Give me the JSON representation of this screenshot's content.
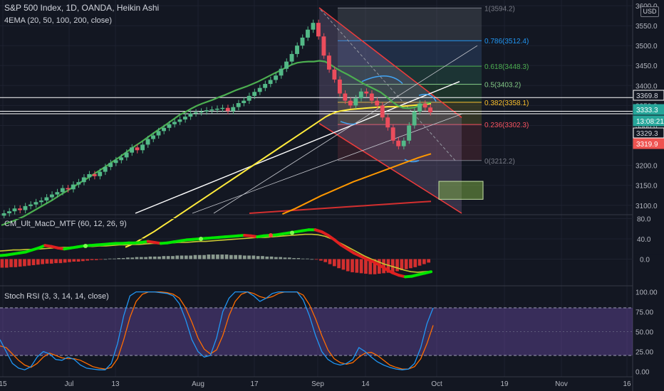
{
  "header": {
    "title": "S&P 500 Index, 1D, OANDA, Heikin Ashi",
    "ema_label": "4EMA (20, 50, 100, 200, close)",
    "macd_label": "CM_Ult_MacD_MTF (60, 12, 26, 9)",
    "rsi_label": "Stoch RSI (3, 3, 14, 14, close)",
    "currency": "USD"
  },
  "colors": {
    "background": "#131722",
    "bull": "#26a69a",
    "bull_candle": "#53b987",
    "bear": "#ef5350",
    "bear_candle": "#eb4d5c",
    "ema20": "#4caf50",
    "ema50": "#ffeb3b",
    "ema100": "#ff9800",
    "ema200": "#d32f2f",
    "stoch_k": "#2196f3",
    "stoch_d": "#ff6d00",
    "rsi_band": "#7e57c2"
  },
  "chart_data": [
    {
      "type": "candlestick",
      "x_ticks": [
        "15",
        "Jul",
        "13",
        "Aug",
        "17",
        "Sep",
        "14",
        "Oct",
        "19",
        "Nov",
        "16"
      ],
      "y_ticks": [
        3100,
        3150,
        3200,
        3250,
        3300,
        3350,
        3400,
        3450,
        3500,
        3550,
        3600
      ],
      "ylim": [
        3080,
        3600
      ],
      "fib_levels": [
        {
          "ratio": "1",
          "value": "3594.2"
        },
        {
          "ratio": "0.786",
          "value": "3512.4"
        },
        {
          "ratio": "0.618",
          "value": "3448.3"
        },
        {
          "ratio": "0.5",
          "value": "3403.2"
        },
        {
          "ratio": "0.382",
          "value": "3358.1"
        },
        {
          "ratio": "0.236",
          "value": "3302.3"
        },
        {
          "ratio": "0",
          "value": "3212.2"
        }
      ],
      "price_tags": [
        {
          "value": "3369.8",
          "kind": "line"
        },
        {
          "value": "3333.3",
          "kind": "last"
        },
        {
          "value": "13:08:21",
          "kind": "countdown"
        },
        {
          "value": "3329.3",
          "kind": "line"
        },
        {
          "value": "3319.9",
          "kind": "low"
        }
      ],
      "horizontal_lines": [
        3369.8,
        3335.5,
        3329.3
      ],
      "close": [
        3080,
        3085,
        3092,
        3088,
        3098,
        3102,
        3108,
        3112,
        3120,
        3127,
        3133,
        3143,
        3140,
        3152,
        3158,
        3170,
        3178,
        3173,
        3184,
        3196,
        3206,
        3213,
        3220,
        3232,
        3245,
        3238,
        3252,
        3266,
        3275,
        3286,
        3294,
        3303,
        3309,
        3315,
        3322,
        3330,
        3333,
        3335,
        3338,
        3340,
        3342,
        3344,
        3336,
        3346,
        3356,
        3362,
        3374,
        3384,
        3394,
        3404,
        3414,
        3425,
        3442,
        3460,
        3479,
        3500,
        3520,
        3540,
        3557,
        3523,
        3475,
        3440,
        3415,
        3380,
        3362,
        3350,
        3368,
        3385,
        3380,
        3362,
        3350,
        3320,
        3295,
        3262,
        3248,
        3262,
        3300,
        3335,
        3355,
        3345,
        3333
      ],
      "ema20": [
        3050,
        3055,
        3060,
        3066,
        3072,
        3080,
        3088,
        3096,
        3104,
        3112,
        3121,
        3130,
        3138,
        3147,
        3156,
        3164,
        3173,
        3182,
        3191,
        3200,
        3210,
        3219,
        3229,
        3239,
        3249,
        3258,
        3268,
        3278,
        3288,
        3297,
        3307,
        3317,
        3327,
        3334,
        3342,
        3349,
        3355,
        3360,
        3365,
        3371,
        3376,
        3382,
        3388,
        3393,
        3398,
        3404,
        3410,
        3417,
        3424,
        3431,
        3438,
        3445,
        3452,
        3457,
        3459,
        3460,
        3460,
        3462,
        3460,
        3452,
        3443,
        3435,
        3428,
        3420,
        3412,
        3404,
        3397,
        3390,
        3383,
        3372,
        3360,
        3350,
        3344,
        3343,
        3345,
        3350,
        3355,
        3358
      ],
      "ema50": [
        2995,
        3000,
        3006,
        3013,
        3020,
        3027,
        3034,
        3042,
        3050,
        3058,
        3066,
        3074,
        3082,
        3090,
        3098,
        3106,
        3114,
        3122,
        3130,
        3138,
        3146,
        3154,
        3162,
        3170,
        3178,
        3186,
        3194,
        3202,
        3210,
        3218,
        3226,
        3234,
        3242,
        3250,
        3258,
        3266,
        3274,
        3282,
        3290,
        3298,
        3306,
        3314,
        3322,
        3328,
        3333,
        3336,
        3338,
        3340,
        3341,
        3342,
        3343,
        3344,
        3345,
        3346,
        3346,
        3347,
        3347,
        3347,
        3348,
        3349,
        3350,
        3351,
        3352,
        3353,
        3355
      ],
      "ema100": [
        3078,
        3085,
        3092,
        3100,
        3108,
        3116,
        3124,
        3131,
        3138,
        3145,
        3152,
        3159,
        3165,
        3171,
        3177,
        3183,
        3189,
        3195,
        3201,
        3207,
        3213,
        3219,
        3224,
        3229
      ],
      "ema200": [
        3080,
        3082,
        3084,
        3086,
        3088,
        3090,
        3092,
        3094,
        3096,
        3098,
        3100,
        3102,
        3104,
        3106,
        3108,
        3110
      ]
    },
    {
      "type": "line",
      "y_ticks": [
        80,
        40,
        0
      ],
      "ylim": [
        -50,
        85
      ],
      "macd": [
        7,
        8,
        10,
        12,
        14,
        18,
        22,
        27,
        25,
        22,
        20,
        22,
        24,
        26,
        27,
        28,
        29,
        30,
        31,
        31,
        32,
        32,
        33,
        35,
        33,
        31,
        32,
        34,
        36,
        38,
        39,
        40,
        41,
        42,
        43,
        44,
        45,
        46,
        47,
        46,
        44,
        46,
        47,
        48,
        50,
        52,
        54,
        56,
        58,
        58,
        54,
        47,
        38,
        28,
        20,
        12,
        6,
        0,
        -5,
        -12,
        -20,
        -27,
        -32,
        -35,
        -34,
        -31,
        -28,
        -25
      ],
      "signal": [
        16,
        17,
        18,
        18,
        19,
        19,
        20,
        21,
        22,
        23,
        23,
        24,
        24,
        25,
        25,
        26,
        26,
        27,
        28,
        28,
        29,
        29,
        30,
        31,
        31,
        32,
        32,
        33,
        33,
        34,
        35,
        35,
        36,
        37,
        38,
        39,
        40,
        41,
        42,
        43,
        43,
        44,
        45,
        46,
        47,
        48,
        49,
        49,
        48,
        45,
        40,
        34,
        27,
        20,
        13,
        6,
        0,
        -5,
        -10,
        -14,
        -18,
        -22,
        -25,
        -26,
        -25,
        -24
      ],
      "histogram": [
        -17,
        -17,
        -16,
        -16,
        -15,
        -14,
        -13,
        -12,
        -11,
        -10,
        -9,
        -9,
        -8,
        -8,
        -7,
        -6,
        -5,
        -5,
        -4,
        -3,
        -2,
        -2,
        -1,
        0,
        1,
        1,
        2,
        2,
        3,
        3,
        4,
        4,
        4,
        5,
        5,
        5,
        6,
        6,
        6,
        7,
        7,
        7,
        7,
        8,
        8,
        8,
        9,
        9,
        9,
        9,
        9,
        8,
        8,
        8,
        7,
        7,
        7,
        6,
        6,
        5,
        5,
        4,
        4,
        3,
        3,
        2,
        2,
        1,
        1,
        0,
        -1,
        -3,
        -6,
        -10,
        -14,
        -18,
        -21,
        -24,
        -26,
        -27,
        -28,
        -29,
        -30,
        -30,
        -29,
        -28,
        -27,
        -26,
        -24,
        -22,
        -20,
        -18,
        -16,
        -13,
        -10,
        -7
      ]
    },
    {
      "type": "line",
      "y_ticks": [
        100,
        75,
        50,
        25,
        0
      ],
      "ylim": [
        -5,
        105
      ],
      "band": [
        20,
        80
      ],
      "k": [
        40,
        25,
        10,
        4,
        2,
        6,
        18,
        25,
        22,
        15,
        14,
        18,
        15,
        8,
        4,
        3,
        2,
        2,
        10,
        35,
        70,
        95,
        100,
        100,
        100,
        100,
        99,
        98,
        95,
        85,
        65,
        40,
        25,
        18,
        20,
        42,
        75,
        92,
        100,
        100,
        100,
        95,
        88,
        92,
        98,
        100,
        100,
        100,
        100,
        90,
        70,
        45,
        25,
        15,
        10,
        8,
        10,
        15,
        30,
        25,
        18,
        12,
        8,
        5,
        3,
        2,
        3,
        10,
        30,
        60,
        80
      ],
      "d": [
        32,
        30,
        22,
        14,
        8,
        5,
        10,
        18,
        23,
        20,
        17,
        16,
        16,
        14,
        10,
        6,
        4,
        3,
        5,
        16,
        40,
        68,
        88,
        97,
        100,
        100,
        100,
        99,
        97,
        92,
        80,
        62,
        42,
        28,
        22,
        27,
        45,
        70,
        88,
        97,
        100,
        98,
        94,
        92,
        94,
        98,
        100,
        100,
        100,
        96,
        84,
        66,
        45,
        27,
        16,
        11,
        9,
        11,
        18,
        23,
        24,
        20,
        14,
        8,
        5,
        3,
        3,
        6,
        16,
        35,
        58
      ]
    }
  ]
}
